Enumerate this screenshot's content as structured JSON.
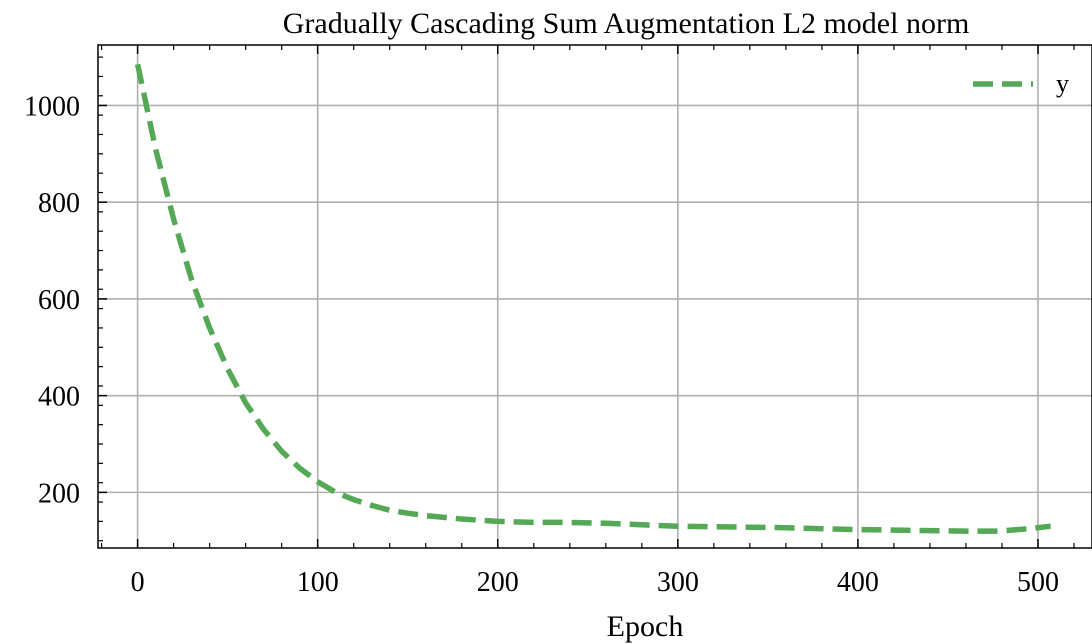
{
  "chart_data": {
    "type": "line",
    "title": "Gradually Cascading Sum Augmentation L2 model norm",
    "xlabel": "Epoch",
    "ylabel": "",
    "xlim": [
      -22,
      530
    ],
    "ylim": [
      85,
      1125
    ],
    "xticks": [
      0,
      100,
      200,
      300,
      400,
      500
    ],
    "yticks": [
      200,
      400,
      600,
      800,
      1000
    ],
    "grid": true,
    "legend_position": "top-right",
    "series": [
      {
        "name": "y",
        "color": "#55a855",
        "style": "dashed",
        "x": [
          0,
          10,
          20,
          30,
          40,
          50,
          60,
          70,
          80,
          90,
          100,
          110,
          120,
          130,
          140,
          150,
          160,
          180,
          200,
          220,
          240,
          260,
          280,
          300,
          320,
          340,
          360,
          380,
          400,
          420,
          440,
          460,
          478,
          495,
          507
        ],
        "y": [
          1085,
          910,
          765,
          640,
          540,
          455,
          385,
          330,
          285,
          250,
          222,
          200,
          185,
          173,
          163,
          157,
          152,
          145,
          140,
          138,
          138,
          136,
          133,
          130,
          129,
          128,
          127,
          125,
          123,
          122,
          121,
          120,
          120,
          125,
          130
        ]
      }
    ]
  }
}
